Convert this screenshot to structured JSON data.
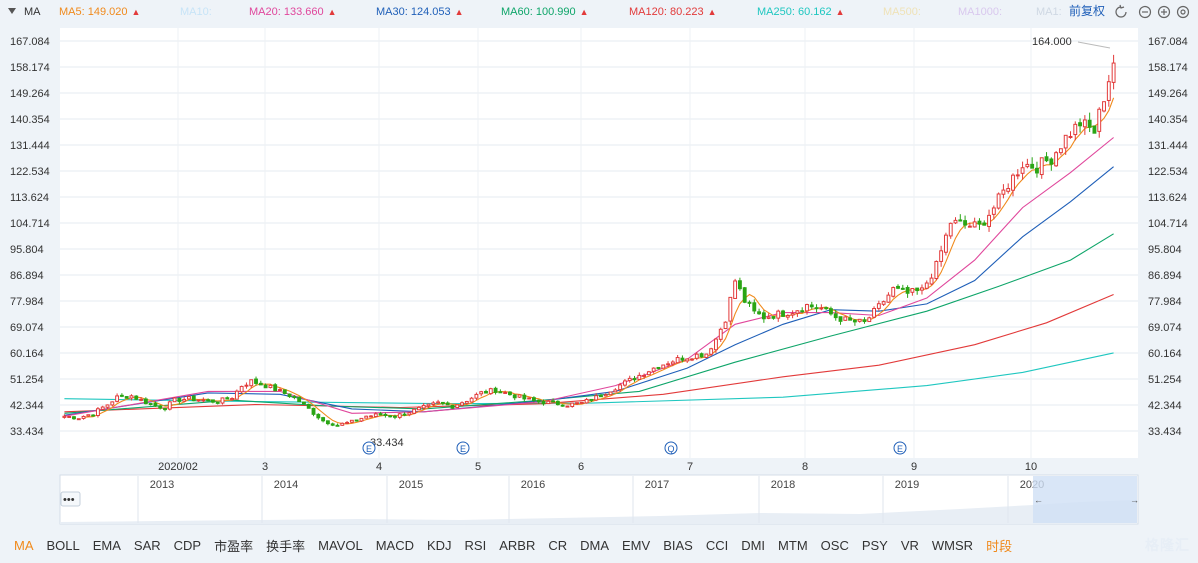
{
  "header": {
    "indicator_label": "MA",
    "adjust_label": "前复权",
    "ma_legend": [
      {
        "label": "MA5: 149.020",
        "color": "#f08a1c",
        "arrow": "▲"
      },
      {
        "label": "MA10:",
        "color": "#c7e4f7",
        "arrow": ""
      },
      {
        "label": "MA20: 133.660",
        "color": "#e0479c",
        "arrow": "▲"
      },
      {
        "label": "MA30: 124.053",
        "color": "#1f5fb8",
        "arrow": "▲"
      },
      {
        "label": "MA60: 100.990",
        "color": "#0ea569",
        "arrow": "▲"
      },
      {
        "label": "MA120: 80.223",
        "color": "#e23a3a",
        "arrow": "▲"
      },
      {
        "label": "MA250: 60.162",
        "color": "#1fc7c0",
        "arrow": "▲"
      },
      {
        "label": "MA500:",
        "color": "#efe2b7",
        "arrow": ""
      },
      {
        "label": "MA1000:",
        "color": "#d9c8ee",
        "arrow": ""
      },
      {
        "label": "MA1:",
        "color": "#cfd8e3",
        "arrow": ""
      }
    ],
    "icons": [
      "undo-icon",
      "zoom-out-icon",
      "zoom-in-icon",
      "settings-icon"
    ]
  },
  "chart_data": {
    "type": "candlestick",
    "y_ticks": [
      "167.084",
      "158.174",
      "149.264",
      "140.354",
      "131.444",
      "122.534",
      "113.624",
      "104.714",
      "95.804",
      "86.894",
      "77.984",
      "69.074",
      "60.164",
      "51.254",
      "42.344",
      "33.434"
    ],
    "ylim": [
      33.434,
      167.084
    ],
    "x_month_labels": [
      "2020/02",
      "3",
      "4",
      "5",
      "6",
      "7",
      "8",
      "9",
      "10"
    ],
    "overview_year_labels": [
      "2013",
      "2014",
      "2015",
      "2016",
      "2017",
      "2018",
      "2019",
      "2020"
    ],
    "max_label": "164.000",
    "min_label": "33.434",
    "event_markers": [
      "E",
      "E",
      "Q",
      "E"
    ],
    "colors": {
      "up": "#e23a3a",
      "down": "#2aa515"
    },
    "close_path": [
      [
        0,
        38.5
      ],
      [
        3,
        38.0
      ],
      [
        6,
        39.5
      ],
      [
        9,
        42.5
      ],
      [
        11,
        45.0
      ],
      [
        14,
        45.5
      ],
      [
        16,
        44.0
      ],
      [
        19,
        42.0
      ],
      [
        21,
        41.5
      ],
      [
        23,
        44.0
      ],
      [
        26,
        44.5
      ],
      [
        29,
        44.0
      ],
      [
        32,
        43.5
      ],
      [
        35,
        45.0
      ],
      [
        37,
        49.0
      ],
      [
        39,
        50.5
      ],
      [
        42,
        49.0
      ],
      [
        45,
        47.0
      ],
      [
        48,
        45.0
      ],
      [
        51,
        41.0
      ],
      [
        54,
        37.0
      ],
      [
        57,
        35.5
      ],
      [
        60,
        36.5
      ],
      [
        63,
        38.5
      ],
      [
        66,
        39.0
      ],
      [
        69,
        38.5
      ],
      [
        72,
        40.0
      ],
      [
        75,
        41.5
      ],
      [
        78,
        43.0
      ],
      [
        81,
        42.0
      ],
      [
        84,
        44.0
      ],
      [
        87,
        46.5
      ],
      [
        90,
        47.5
      ],
      [
        93,
        46.0
      ],
      [
        96,
        44.5
      ],
      [
        99,
        43.5
      ],
      [
        102,
        43.0
      ],
      [
        105,
        42.5
      ],
      [
        108,
        43.0
      ],
      [
        111,
        45.0
      ],
      [
        114,
        47.5
      ],
      [
        117,
        50.0
      ],
      [
        120,
        52.5
      ],
      [
        123,
        55.0
      ],
      [
        126,
        57.0
      ],
      [
        129,
        58.5
      ],
      [
        132,
        59.5
      ],
      [
        134,
        60.0
      ],
      [
        136,
        65.0
      ],
      [
        138,
        72.0
      ],
      [
        140,
        85.0
      ],
      [
        142,
        78.0
      ],
      [
        144,
        74.0
      ],
      [
        146,
        72.5
      ],
      [
        149,
        73.5
      ],
      [
        152,
        74.5
      ],
      [
        155,
        76.5
      ],
      [
        158,
        75.5
      ],
      [
        161,
        72.5
      ],
      [
        164,
        71.0
      ],
      [
        167,
        70.5
      ],
      [
        170,
        76.0
      ],
      [
        173,
        82.0
      ],
      [
        176,
        80.5
      ],
      [
        179,
        81.5
      ],
      [
        182,
        90.0
      ],
      [
        185,
        105.0
      ],
      [
        188,
        104.0
      ],
      [
        191,
        103.5
      ],
      [
        194,
        110.0
      ],
      [
        197,
        118.0
      ],
      [
        200,
        125.0
      ],
      [
        203,
        124.0
      ],
      [
        206,
        127.0
      ],
      [
        209,
        134.0
      ],
      [
        212,
        139.0
      ],
      [
        215,
        136.0
      ],
      [
        217,
        148.0
      ],
      [
        219,
        160.0
      ]
    ],
    "moving_averages": [
      {
        "name": "MA250",
        "color": "#1fc7c0",
        "points": [
          [
            0,
            44.5
          ],
          [
            40,
            43.5
          ],
          [
            80,
            42.8
          ],
          [
            110,
            43.0
          ],
          [
            150,
            45.0
          ],
          [
            180,
            49.0
          ],
          [
            200,
            53.5
          ],
          [
            219,
            60.2
          ]
        ]
      },
      {
        "name": "MA120",
        "color": "#e23a3a",
        "points": [
          [
            0,
            40.0
          ],
          [
            40,
            42.5
          ],
          [
            70,
            41.5
          ],
          [
            100,
            42.8
          ],
          [
            125,
            46.0
          ],
          [
            150,
            52.0
          ],
          [
            170,
            56.0
          ],
          [
            190,
            63.0
          ],
          [
            205,
            70.5
          ],
          [
            219,
            80.2
          ]
        ]
      },
      {
        "name": "MA60",
        "color": "#0ea569",
        "points": [
          [
            0,
            39.5
          ],
          [
            35,
            44.0
          ],
          [
            55,
            42.0
          ],
          [
            75,
            41.0
          ],
          [
            100,
            44.0
          ],
          [
            120,
            47.0
          ],
          [
            140,
            57.0
          ],
          [
            160,
            66.0
          ],
          [
            180,
            74.5
          ],
          [
            195,
            83.0
          ],
          [
            210,
            92.0
          ],
          [
            219,
            101.0
          ]
        ]
      },
      {
        "name": "MA30",
        "color": "#1f5fb8",
        "points": [
          [
            0,
            38.8
          ],
          [
            30,
            46.5
          ],
          [
            45,
            46.0
          ],
          [
            60,
            41.0
          ],
          [
            75,
            40.0
          ],
          [
            100,
            43.8
          ],
          [
            115,
            47.0
          ],
          [
            130,
            55.0
          ],
          [
            140,
            63.0
          ],
          [
            150,
            70.0
          ],
          [
            160,
            75.0
          ],
          [
            170,
            74.5
          ],
          [
            180,
            77.0
          ],
          [
            190,
            85.0
          ],
          [
            200,
            100.0
          ],
          [
            210,
            112.0
          ],
          [
            219,
            124.0
          ]
        ]
      },
      {
        "name": "MA20",
        "color": "#e0479c",
        "points": [
          [
            0,
            38.5
          ],
          [
            30,
            47.0
          ],
          [
            45,
            47.0
          ],
          [
            60,
            39.5
          ],
          [
            75,
            40.0
          ],
          [
            100,
            43.5
          ],
          [
            115,
            49.0
          ],
          [
            130,
            58.0
          ],
          [
            140,
            70.0
          ],
          [
            150,
            74.0
          ],
          [
            160,
            74.0
          ],
          [
            170,
            73.0
          ],
          [
            180,
            79.0
          ],
          [
            190,
            92.0
          ],
          [
            200,
            110.0
          ],
          [
            210,
            122.0
          ],
          [
            219,
            134.0
          ]
        ]
      },
      {
        "name": "MA5",
        "color": "#f08a1c",
        "points": []
      }
    ]
  },
  "bottom_tabs": [
    "MA",
    "BOLL",
    "EMA",
    "SAR",
    "CDP",
    "市盈率",
    "换手率",
    "MAVOL",
    "MACD",
    "KDJ",
    "RSI",
    "ARBR",
    "CR",
    "DMA",
    "EMV",
    "BIAS",
    "CCI",
    "DMI",
    "MTM",
    "OSC",
    "PSY",
    "VR",
    "WMSR",
    "时段"
  ],
  "watermark": "格隆汇"
}
